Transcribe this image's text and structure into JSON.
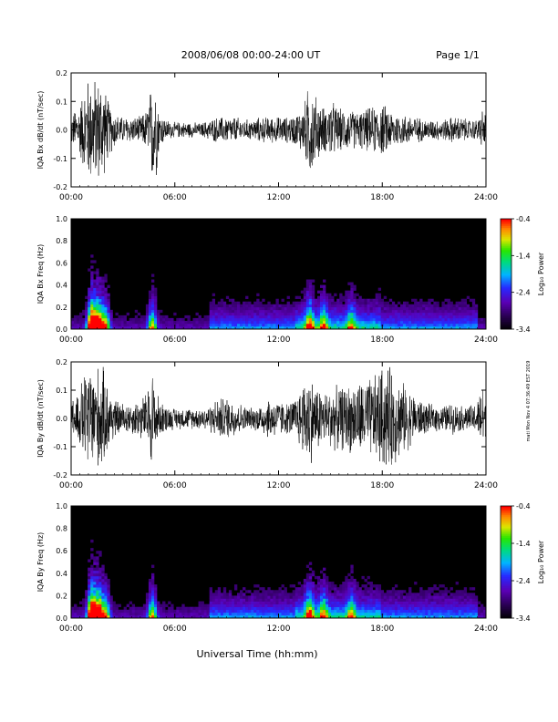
{
  "header": {
    "title": "2008/06/08  00:00-24:00 UT",
    "page": "Page 1/1"
  },
  "side_note": "mati Mon Nov 4 07:36:49 EST 2019",
  "xlabel": "Universal Time (hh:mm)",
  "chart_data": [
    {
      "type": "line",
      "id": "bx-wave",
      "ylabel": "IQA Bx dB/dt (nT/sec)",
      "xlim": [
        0,
        24
      ],
      "ylim": [
        -0.2,
        0.2
      ],
      "x_ticks": [
        "00:00",
        "06:00",
        "12:00",
        "18:00",
        "24:00"
      ],
      "y_ticks": [
        "-0.2",
        "-0.1",
        "0.0",
        "0.1",
        "0.2"
      ],
      "envelope": {
        "x": [
          0,
          0.5,
          0.9,
          1.2,
          1.5,
          1.8,
          2.2,
          2.6,
          3.0,
          3.5,
          4.0,
          4.4,
          4.7,
          4.9,
          5.1,
          5.5,
          6.0,
          6.5,
          7.0,
          7.5,
          8.0,
          8.5,
          9.0,
          9.5,
          10.0,
          10.5,
          11.0,
          11.5,
          12.0,
          12.5,
          13.0,
          13.5,
          13.8,
          14.0,
          14.4,
          14.8,
          15.0,
          15.5,
          16.0,
          16.5,
          17.0,
          17.5,
          18.0,
          18.5,
          19.0,
          19.5,
          20.0,
          20.5,
          21.0,
          21.5,
          22.0,
          22.5,
          23.0,
          23.5,
          23.8,
          24
        ],
        "amplitude": [
          0.06,
          0.1,
          0.2,
          0.2,
          0.2,
          0.2,
          0.1,
          0.06,
          0.05,
          0.05,
          0.05,
          0.08,
          0.2,
          0.2,
          0.07,
          0.04,
          0.03,
          0.03,
          0.03,
          0.025,
          0.04,
          0.05,
          0.05,
          0.05,
          0.04,
          0.04,
          0.05,
          0.05,
          0.05,
          0.05,
          0.06,
          0.1,
          0.2,
          0.15,
          0.1,
          0.08,
          0.12,
          0.08,
          0.08,
          0.07,
          0.08,
          0.09,
          0.1,
          0.08,
          0.06,
          0.06,
          0.05,
          0.04,
          0.04,
          0.04,
          0.05,
          0.05,
          0.04,
          0.04,
          0.08,
          0.06
        ]
      }
    },
    {
      "type": "heatmap",
      "id": "bx-spectrogram",
      "ylabel": "IQA Bx Freq (Hz)",
      "xlim": [
        0,
        24
      ],
      "ylim": [
        0,
        1.0
      ],
      "x_ticks": [
        "00:00",
        "06:00",
        "12:00",
        "18:00",
        "24:00"
      ],
      "y_ticks": [
        "0.0",
        "0.2",
        "0.4",
        "0.6",
        "0.8",
        "1.0"
      ],
      "colorbar": {
        "label": "Log₁₀ Power",
        "ticks": [
          "-0.4",
          "-1.4",
          "-2.4",
          "-3.4"
        ],
        "range": [
          -3.4,
          -0.4
        ]
      }
    },
    {
      "type": "line",
      "id": "by-wave",
      "ylabel": "IQA By dB/dt (nT/sec)",
      "xlim": [
        0,
        24
      ],
      "ylim": [
        -0.2,
        0.2
      ],
      "x_ticks": [
        "00:00",
        "06:00",
        "12:00",
        "18:00",
        "24:00"
      ],
      "y_ticks": [
        "-0.2",
        "-0.1",
        "0.0",
        "0.1",
        "0.2"
      ],
      "envelope": {
        "x": [
          0,
          0.5,
          0.9,
          1.2,
          1.5,
          1.8,
          2.2,
          2.6,
          3.0,
          3.5,
          4.0,
          4.4,
          4.7,
          4.9,
          5.1,
          5.5,
          6.0,
          6.5,
          7.0,
          7.5,
          8.0,
          8.5,
          9.0,
          9.5,
          10.0,
          10.5,
          11.0,
          11.5,
          12.0,
          12.5,
          13.0,
          13.5,
          13.8,
          14.0,
          14.4,
          14.8,
          15.0,
          15.5,
          16.0,
          16.5,
          17.0,
          17.5,
          18.0,
          18.5,
          19.0,
          19.5,
          20.0,
          20.5,
          21.0,
          21.5,
          22.0,
          22.5,
          23.0,
          23.5,
          23.8,
          24
        ],
        "amplitude": [
          0.07,
          0.12,
          0.2,
          0.2,
          0.2,
          0.2,
          0.12,
          0.07,
          0.06,
          0.06,
          0.08,
          0.1,
          0.2,
          0.12,
          0.07,
          0.05,
          0.04,
          0.04,
          0.04,
          0.04,
          0.05,
          0.08,
          0.08,
          0.07,
          0.05,
          0.04,
          0.06,
          0.08,
          0.07,
          0.06,
          0.08,
          0.15,
          0.2,
          0.14,
          0.12,
          0.1,
          0.12,
          0.12,
          0.13,
          0.14,
          0.15,
          0.16,
          0.2,
          0.2,
          0.15,
          0.12,
          0.08,
          0.06,
          0.05,
          0.05,
          0.06,
          0.05,
          0.05,
          0.06,
          0.15,
          0.06
        ]
      }
    },
    {
      "type": "heatmap",
      "id": "by-spectrogram",
      "ylabel": "IQA By Freq (Hz)",
      "xlim": [
        0,
        24
      ],
      "ylim": [
        0,
        1.0
      ],
      "x_ticks": [
        "00:00",
        "06:00",
        "12:00",
        "18:00",
        "24:00"
      ],
      "y_ticks": [
        "0.0",
        "0.2",
        "0.4",
        "0.6",
        "0.8",
        "1.0"
      ],
      "colorbar": {
        "label": "Log₁₀ Power",
        "ticks": [
          "-0.4",
          "-1.4",
          "-2.4",
          "-3.4"
        ],
        "range": [
          -3.4,
          -0.4
        ]
      }
    }
  ]
}
